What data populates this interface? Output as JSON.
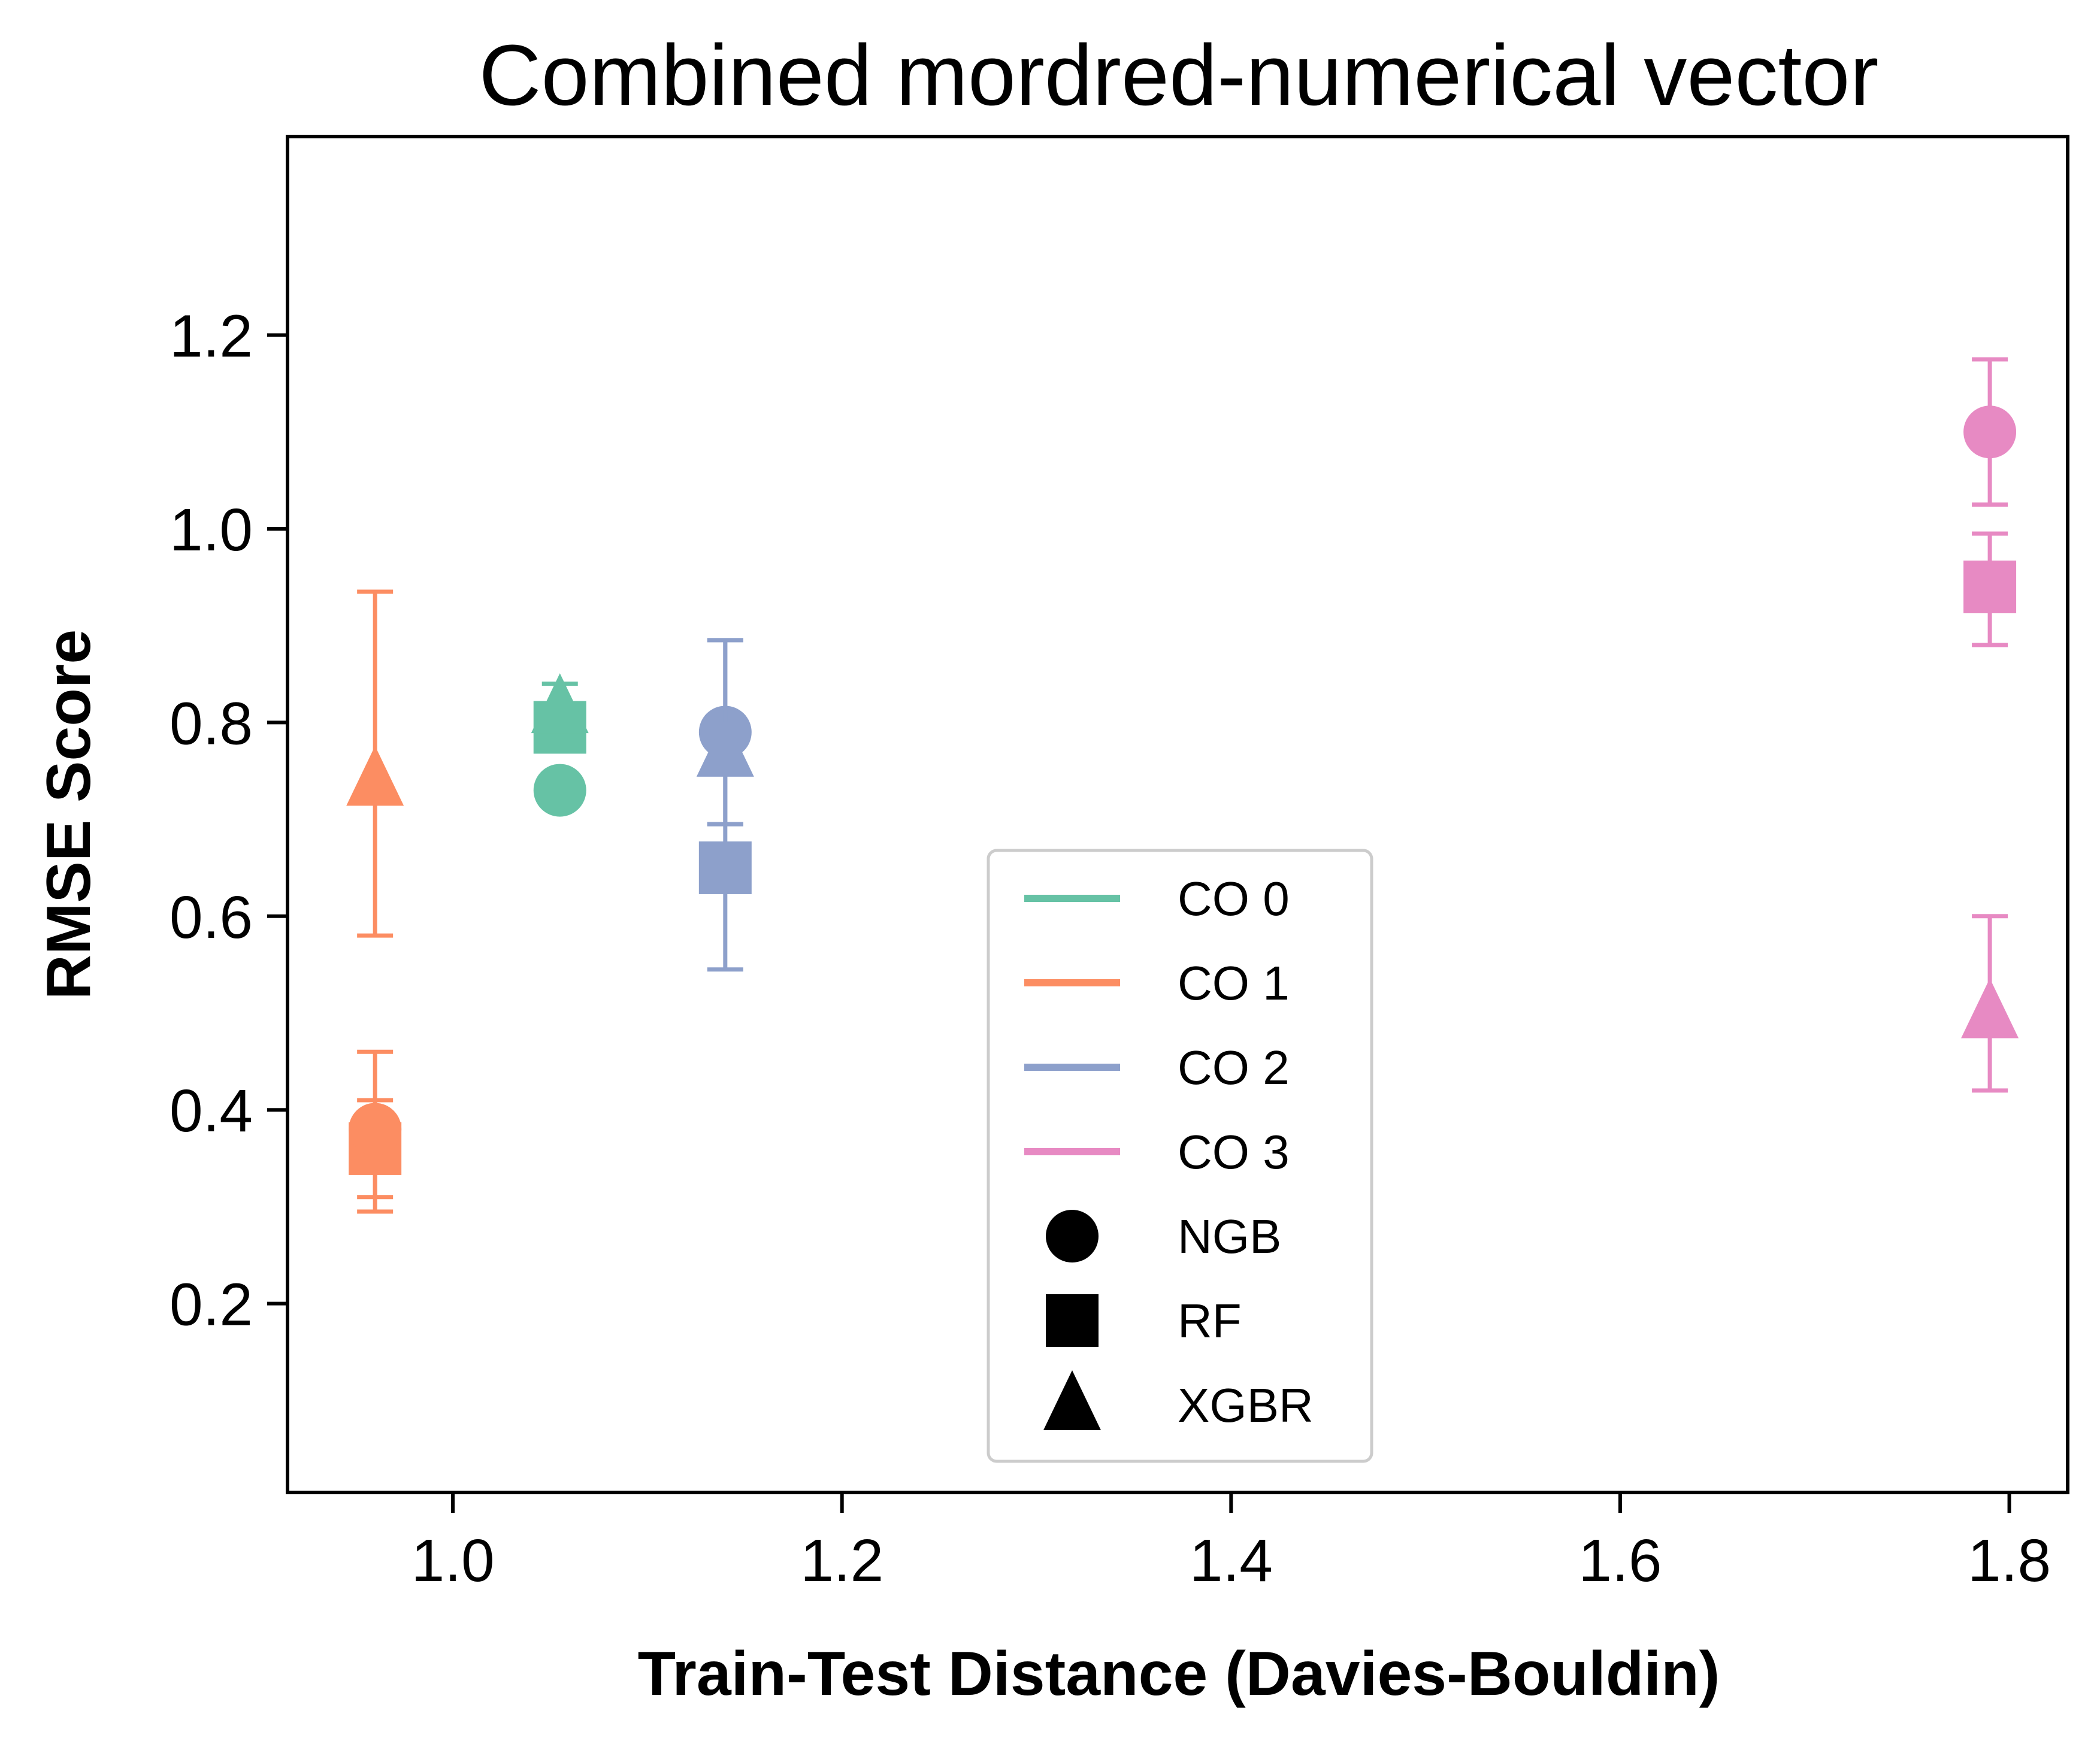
{
  "chart_data": {
    "type": "scatter",
    "title": "Combined mordred-numerical vector",
    "xlabel": "Train-Test Distance (Davies-Bouldin)",
    "ylabel": "RMSE Score",
    "xlim": [
      0.915,
      1.83
    ],
    "ylim": [
      0.005,
      1.405
    ],
    "xticks": [
      "1.0",
      "1.2",
      "1.4",
      "1.6",
      "1.8"
    ],
    "yticks": [
      "0.2",
      "0.4",
      "0.6",
      "0.8",
      "1.0",
      "1.2"
    ],
    "grid": false,
    "legend_position": "lower-center",
    "legend": {
      "colors": [
        {
          "label": "CO 0",
          "color": "#66c2a5"
        },
        {
          "label": "CO 1",
          "color": "#fc8d62"
        },
        {
          "label": "CO 2",
          "color": "#8da0cb"
        },
        {
          "label": "CO 3",
          "color": "#e78ac3"
        }
      ],
      "markers": [
        {
          "label": "NGB",
          "marker": "circle"
        },
        {
          "label": "RF",
          "marker": "square"
        },
        {
          "label": "XGBR",
          "marker": "triangle"
        }
      ]
    },
    "points": [
      {
        "group": "CO 0",
        "model": "NGB",
        "x": 1.055,
        "y": 0.73,
        "yerr": [
          0.73,
          0.73
        ]
      },
      {
        "group": "CO 0",
        "model": "RF",
        "x": 1.055,
        "y": 0.795,
        "yerr": [
          0.795,
          0.795
        ]
      },
      {
        "group": "CO 0",
        "model": "XGBR",
        "x": 1.055,
        "y": 0.815,
        "yerr": [
          0.84,
          0.84
        ]
      },
      {
        "group": "CO 1",
        "model": "NGB",
        "x": 0.96,
        "y": 0.38,
        "yerr": [
          0.31,
          0.46
        ]
      },
      {
        "group": "CO 1",
        "model": "RF",
        "x": 0.96,
        "y": 0.36,
        "yerr": [
          0.295,
          0.41
        ]
      },
      {
        "group": "CO 1",
        "model": "XGBR",
        "x": 0.96,
        "y": 0.74,
        "yerr": [
          0.58,
          0.935
        ]
      },
      {
        "group": "CO 2",
        "model": "NGB",
        "x": 1.14,
        "y": 0.79,
        "yerr": [
          0.695,
          0.885
        ]
      },
      {
        "group": "CO 2",
        "model": "RF",
        "x": 1.14,
        "y": 0.65,
        "yerr": [
          0.545,
          0.695
        ]
      },
      {
        "group": "CO 2",
        "model": "XGBR",
        "x": 1.14,
        "y": 0.77,
        "yerr": [
          0.695,
          0.885
        ]
      },
      {
        "group": "CO 3",
        "model": "NGB",
        "x": 1.79,
        "y": 1.1,
        "yerr": [
          1.025,
          1.175
        ]
      },
      {
        "group": "CO 3",
        "model": "RF",
        "x": 1.79,
        "y": 0.94,
        "yerr": [
          0.88,
          0.995
        ]
      },
      {
        "group": "CO 3",
        "model": "XGBR",
        "x": 1.79,
        "y": 0.5,
        "yerr": [
          0.42,
          0.6
        ]
      }
    ]
  }
}
